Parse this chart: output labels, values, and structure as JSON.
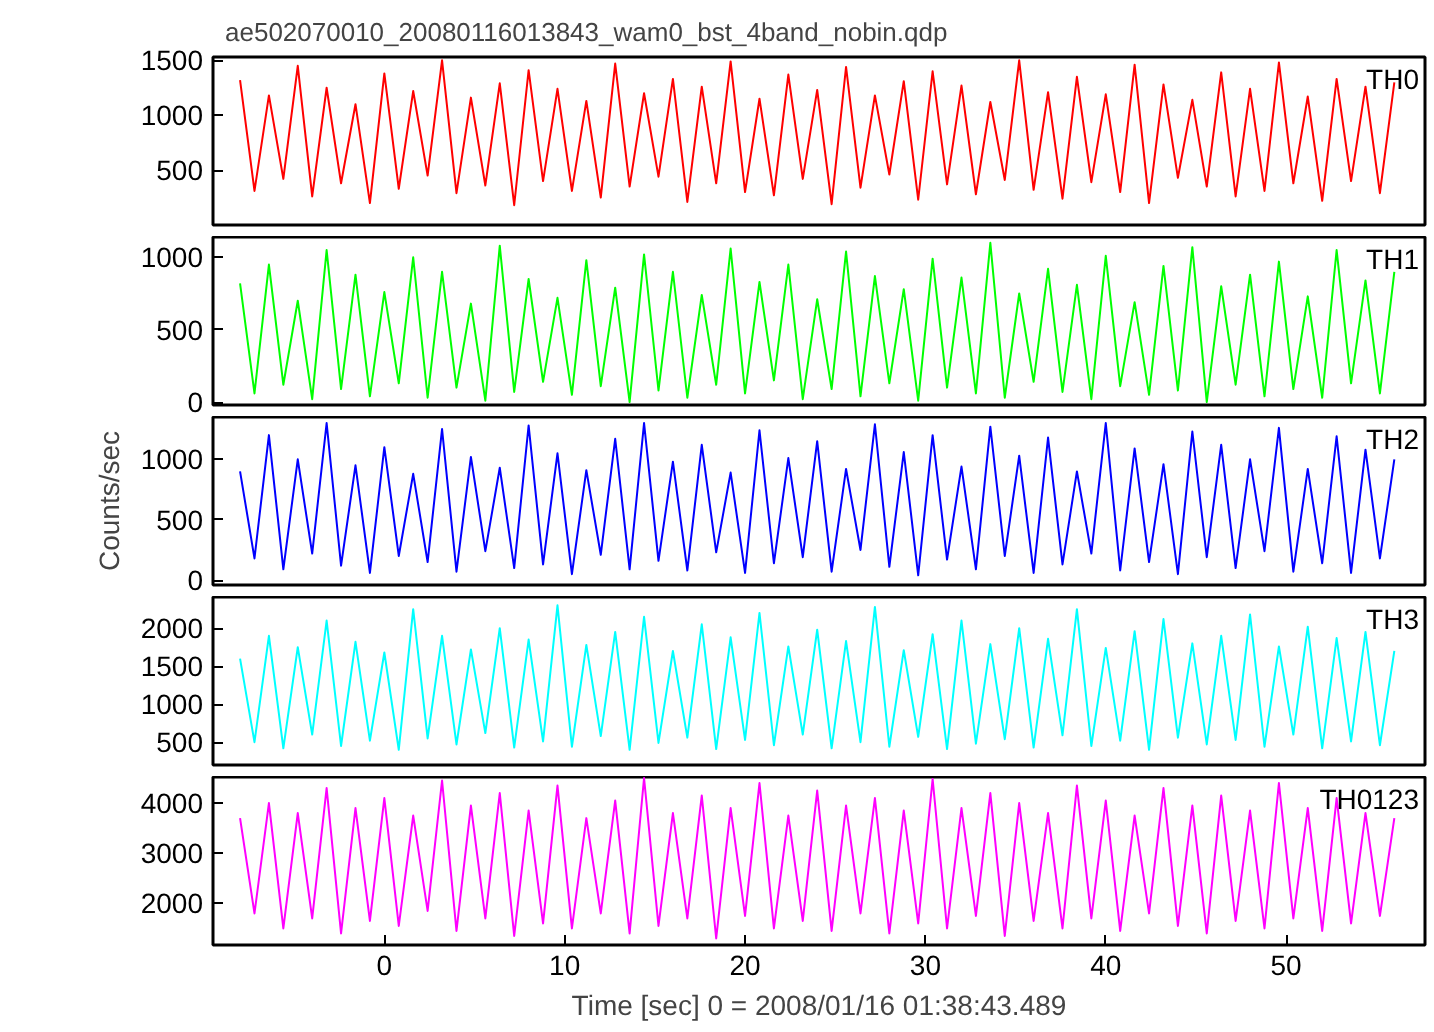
{
  "chart_data": [
    {
      "type": "line",
      "title": "ae502070010_20080116013843_wam0_bst_4band_nobin.qdp",
      "annotations": [
        "TH0"
      ],
      "tick_labels": "y",
      "xlim": [
        -9.5,
        57.7
      ],
      "xticks": [
        0,
        10,
        20,
        30,
        40,
        50
      ],
      "ylim": [
        0,
        1530
      ],
      "yticks": [
        500,
        1000,
        1500
      ],
      "x": [
        -8,
        -7.2,
        -6.4,
        -5.6,
        -4.8,
        -4,
        -3.2,
        -2.4,
        -1.6,
        -0.8,
        0,
        0.8,
        1.6,
        2.4,
        3.2,
        4,
        4.8,
        5.6,
        6.4,
        7.2,
        8,
        8.8,
        9.6,
        10.4,
        11.2,
        12,
        12.8,
        13.6,
        14.4,
        15.2,
        16,
        16.8,
        17.6,
        18.4,
        19.2,
        20,
        20.8,
        21.6,
        22.4,
        23.2,
        24,
        24.8,
        25.6,
        26.4,
        27.2,
        28,
        28.8,
        29.6,
        30.4,
        31.2,
        32,
        32.8,
        33.6,
        34.4,
        35.2,
        36,
        36.8,
        37.6,
        38.4,
        39.2,
        40,
        40.8,
        41.6,
        42.4,
        43.2,
        44,
        44.8,
        45.6,
        46.4,
        47.2,
        48,
        48.8,
        49.6,
        50.4,
        51.2,
        52,
        52.8,
        53.6,
        54.4,
        55.2,
        56
      ],
      "series": [
        {
          "color": "#ff0000",
          "values": [
            1320,
            310,
            1180,
            420,
            1450,
            260,
            1250,
            380,
            1100,
            200,
            1380,
            330,
            1220,
            450,
            1500,
            290,
            1160,
            360,
            1290,
            180,
            1410,
            400,
            1240,
            310,
            1130,
            250,
            1470,
            350,
            1200,
            440,
            1330,
            210,
            1260,
            380,
            1490,
            300,
            1150,
            270,
            1370,
            420,
            1230,
            190,
            1440,
            340,
            1180,
            460,
            1310,
            230,
            1400,
            370,
            1270,
            280,
            1120,
            410,
            1500,
            320,
            1210,
            240,
            1350,
            390,
            1190,
            300,
            1460,
            200,
            1280,
            430,
            1140,
            350,
            1390,
            260,
            1240,
            310,
            1480,
            380,
            1170,
            220,
            1330,
            400,
            1260,
            290,
            1300
          ]
        }
      ]
    },
    {
      "type": "line",
      "annotations": [
        "TH1"
      ],
      "tick_labels": "y",
      "xlim": [
        -9.5,
        57.7
      ],
      "xticks": [
        0,
        10,
        20,
        30,
        40,
        50
      ],
      "ylim": [
        -20,
        1140
      ],
      "yticks": [
        0,
        500,
        1000
      ],
      "x": [
        -8,
        -7.2,
        -6.4,
        -5.6,
        -4.8,
        -4,
        -3.2,
        -2.4,
        -1.6,
        -0.8,
        0,
        0.8,
        1.6,
        2.4,
        3.2,
        4,
        4.8,
        5.6,
        6.4,
        7.2,
        8,
        8.8,
        9.6,
        10.4,
        11.2,
        12,
        12.8,
        13.6,
        14.4,
        15.2,
        16,
        16.8,
        17.6,
        18.4,
        19.2,
        20,
        20.8,
        21.6,
        22.4,
        23.2,
        24,
        24.8,
        25.6,
        26.4,
        27.2,
        28,
        28.8,
        29.6,
        30.4,
        31.2,
        32,
        32.8,
        33.6,
        34.4,
        35.2,
        36,
        36.8,
        37.6,
        38.4,
        39.2,
        40,
        40.8,
        41.6,
        42.4,
        43.2,
        44,
        44.8,
        45.6,
        46.4,
        47.2,
        48,
        48.8,
        49.6,
        50.4,
        51.2,
        52,
        52.8,
        53.6,
        54.4,
        55.2,
        56
      ],
      "series": [
        {
          "color": "#00ff00",
          "values": [
            820,
            60,
            950,
            120,
            700,
            20,
            1050,
            90,
            880,
            40,
            760,
            130,
            1000,
            30,
            900,
            100,
            680,
            10,
            1080,
            70,
            850,
            140,
            720,
            50,
            980,
            110,
            790,
            0,
            1020,
            80,
            900,
            30,
            740,
            120,
            1060,
            60,
            830,
            150,
            950,
            20,
            710,
            90,
            1040,
            40,
            870,
            130,
            780,
            10,
            990,
            100,
            860,
            60,
            1100,
            30,
            750,
            140,
            920,
            70,
            810,
            20,
            1010,
            110,
            690,
            50,
            940,
            80,
            1070,
            0,
            800,
            120,
            880,
            40,
            970,
            90,
            730,
            30,
            1050,
            130,
            840,
            60,
            900
          ]
        }
      ]
    },
    {
      "type": "line",
      "annotations": [
        "TH2"
      ],
      "ylabel": "Counts/sec",
      "tick_labels": "y",
      "xlim": [
        -9.5,
        57.7
      ],
      "xticks": [
        0,
        10,
        20,
        30,
        40,
        50
      ],
      "ylim": [
        -40,
        1350
      ],
      "yticks": [
        0,
        500,
        1000
      ],
      "x": [
        -8,
        -7.2,
        -6.4,
        -5.6,
        -4.8,
        -4,
        -3.2,
        -2.4,
        -1.6,
        -0.8,
        0,
        0.8,
        1.6,
        2.4,
        3.2,
        4,
        4.8,
        5.6,
        6.4,
        7.2,
        8,
        8.8,
        9.6,
        10.4,
        11.2,
        12,
        12.8,
        13.6,
        14.4,
        15.2,
        16,
        16.8,
        17.6,
        18.4,
        19.2,
        20,
        20.8,
        21.6,
        22.4,
        23.2,
        24,
        24.8,
        25.6,
        26.4,
        27.2,
        28,
        28.8,
        29.6,
        30.4,
        31.2,
        32,
        32.8,
        33.6,
        34.4,
        35.2,
        36,
        36.8,
        37.6,
        38.4,
        39.2,
        40,
        40.8,
        41.6,
        42.4,
        43.2,
        44,
        44.8,
        45.6,
        46.4,
        47.2,
        48,
        48.8,
        49.6,
        50.4,
        51.2,
        52,
        52.8,
        53.6,
        54.4,
        55.2,
        56
      ],
      "series": [
        {
          "color": "#0000ff",
          "values": [
            900,
            180,
            1200,
            90,
            1000,
            220,
            1300,
            120,
            950,
            60,
            1100,
            200,
            880,
            150,
            1250,
            70,
            1020,
            240,
            930,
            100,
            1280,
            130,
            1050,
            50,
            910,
            210,
            1170,
            90,
            1300,
            160,
            980,
            80,
            1120,
            230,
            890,
            60,
            1240,
            140,
            1010,
            190,
            1150,
            70,
            920,
            250,
            1290,
            110,
            1060,
            40,
            1200,
            170,
            940,
            90,
            1270,
            200,
            1030,
            60,
            1180,
            130,
            900,
            220,
            1300,
            80,
            1090,
            150,
            960,
            50,
            1230,
            190,
            1120,
            100,
            1000,
            240,
            1260,
            70,
            920,
            140,
            1190,
            60,
            1080,
            180,
            1000
          ]
        }
      ]
    },
    {
      "type": "line",
      "annotations": [
        "TH3"
      ],
      "tick_labels": "y",
      "xlim": [
        -9.5,
        57.7
      ],
      "xticks": [
        0,
        10,
        20,
        30,
        40,
        50
      ],
      "ylim": [
        200,
        2410
      ],
      "yticks": [
        500,
        1000,
        1500,
        2000
      ],
      "x": [
        -8,
        -7.2,
        -6.4,
        -5.6,
        -4.8,
        -4,
        -3.2,
        -2.4,
        -1.6,
        -0.8,
        0,
        0.8,
        1.6,
        2.4,
        3.2,
        4,
        4.8,
        5.6,
        6.4,
        7.2,
        8,
        8.8,
        9.6,
        10.4,
        11.2,
        12,
        12.8,
        13.6,
        14.4,
        15.2,
        16,
        16.8,
        17.6,
        18.4,
        19.2,
        20,
        20.8,
        21.6,
        22.4,
        23.2,
        24,
        24.8,
        25.6,
        26.4,
        27.2,
        28,
        28.8,
        29.6,
        30.4,
        31.2,
        32,
        32.8,
        33.6,
        34.4,
        35.2,
        36,
        36.8,
        37.6,
        38.4,
        39.2,
        40,
        40.8,
        41.6,
        42.4,
        43.2,
        44,
        44.8,
        45.6,
        46.4,
        47.2,
        48,
        48.8,
        49.6,
        50.4,
        51.2,
        52,
        52.8,
        53.6,
        54.4,
        55.2,
        56
      ],
      "series": [
        {
          "color": "#00ffff",
          "values": [
            1600,
            500,
            1900,
            420,
            1750,
            600,
            2100,
            450,
            1820,
            520,
            1680,
            400,
            2250,
            550,
            1900,
            470,
            1720,
            620,
            2000,
            430,
            1850,
            510,
            2300,
            440,
            1780,
            580,
            1950,
            400,
            2150,
            490,
            1700,
            560,
            2050,
            410,
            1880,
            530,
            2200,
            460,
            1760,
            600,
            1980,
            420,
            1830,
            500,
            2280,
            440,
            1710,
            570,
            1920,
            410,
            2100,
            480,
            1790,
            540,
            2000,
            430,
            1860,
            590,
            2250,
            450,
            1740,
            520,
            1960,
            400,
            2120,
            560,
            1800,
            470,
            1900,
            530,
            2180,
            440,
            1760,
            600,
            2020,
            420,
            1870,
            510,
            1950,
            460,
            1700
          ]
        }
      ]
    },
    {
      "type": "line",
      "annotations": [
        "TH0123"
      ],
      "xlabel": "Time [sec] 0 = 2008/01/16 01:38:43.489",
      "xlim": [
        -9.5,
        57.7
      ],
      "xticks": [
        0,
        10,
        20,
        30,
        40,
        50
      ],
      "ylim": [
        1170,
        4520
      ],
      "yticks": [
        2000,
        3000,
        4000
      ],
      "x": [
        -8,
        -7.2,
        -6.4,
        -5.6,
        -4.8,
        -4,
        -3.2,
        -2.4,
        -1.6,
        -0.8,
        0,
        0.8,
        1.6,
        2.4,
        3.2,
        4,
        4.8,
        5.6,
        6.4,
        7.2,
        8,
        8.8,
        9.6,
        10.4,
        11.2,
        12,
        12.8,
        13.6,
        14.4,
        15.2,
        16,
        16.8,
        17.6,
        18.4,
        19.2,
        20,
        20.8,
        21.6,
        22.4,
        23.2,
        24,
        24.8,
        25.6,
        26.4,
        27.2,
        28,
        28.8,
        29.6,
        30.4,
        31.2,
        32,
        32.8,
        33.6,
        34.4,
        35.2,
        36,
        36.8,
        37.6,
        38.4,
        39.2,
        40,
        40.8,
        41.6,
        42.4,
        43.2,
        44,
        44.8,
        45.6,
        46.4,
        47.2,
        48,
        48.8,
        49.6,
        50.4,
        51.2,
        52,
        52.8,
        53.6,
        54.4,
        55.2,
        56
      ],
      "series": [
        {
          "color": "#ff00ff",
          "values": [
            3700,
            1800,
            4000,
            1500,
            3800,
            1700,
            4300,
            1400,
            3900,
            1650,
            4100,
            1550,
            3750,
            1850,
            4450,
            1450,
            3950,
            1700,
            4200,
            1350,
            3850,
            1600,
            4350,
            1500,
            3700,
            1800,
            4050,
            1400,
            4500,
            1550,
            3800,
            1700,
            4150,
            1300,
            3900,
            1750,
            4400,
            1500,
            3750,
            1650,
            4250,
            1450,
            3950,
            1800,
            4100,
            1400,
            3850,
            1600,
            4480,
            1500,
            3900,
            1750,
            4200,
            1350,
            4000,
            1650,
            3800,
            1500,
            4350,
            1700,
            4050,
            1450,
            3750,
            1800,
            4300,
            1550,
            3950,
            1400,
            4150,
            1650,
            3850,
            1500,
            4400,
            1700,
            3900,
            1450,
            4100,
            1600,
            3800,
            1750,
            3700
          ]
        }
      ]
    }
  ]
}
